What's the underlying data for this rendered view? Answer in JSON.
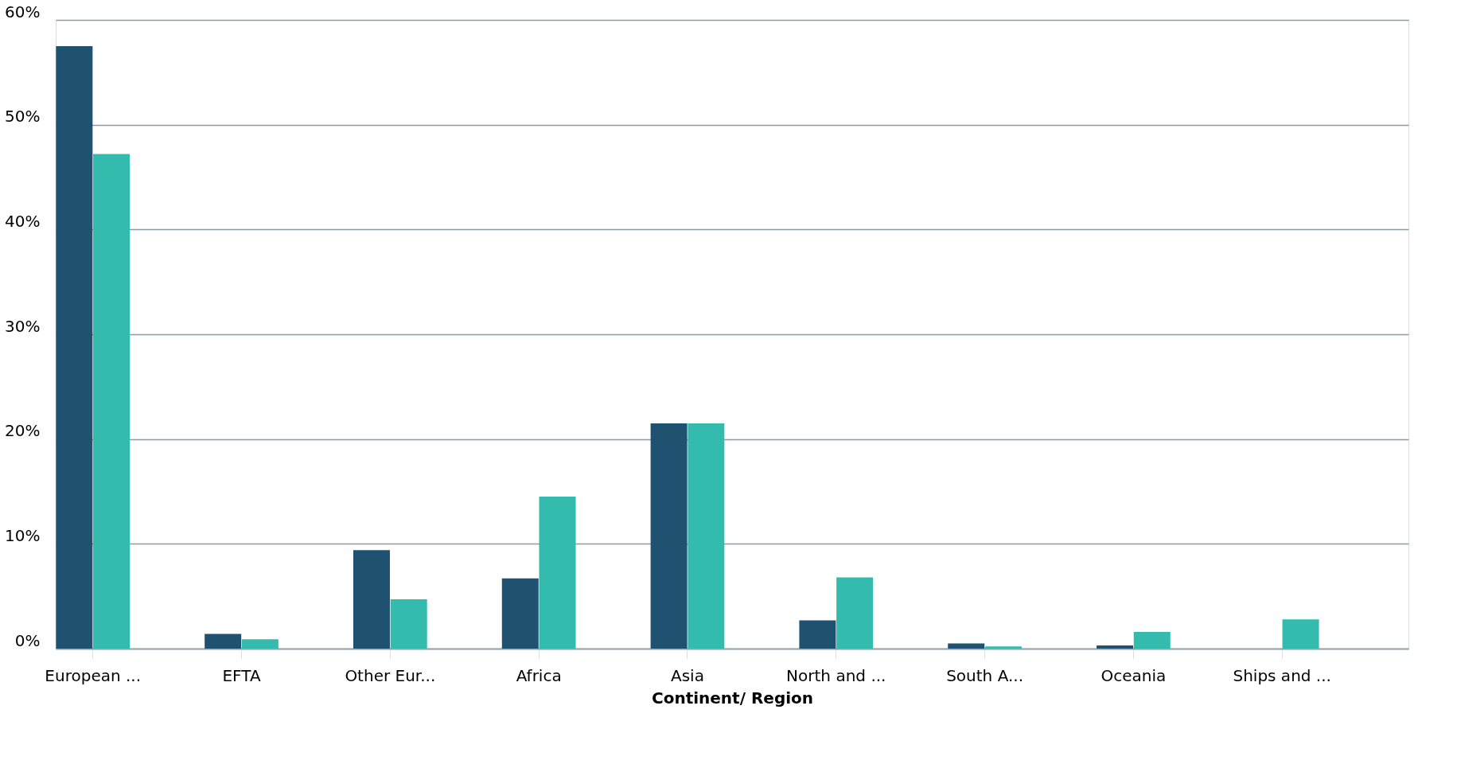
{
  "chart_data": {
    "type": "bar",
    "xlabel": "Continent/ Region",
    "categories": [
      "European ...",
      "EFTA",
      "Other Eur...",
      "Africa",
      "Asia",
      "North and ...",
      "South A...",
      "Oceania",
      "Ships and ..."
    ],
    "series": [
      {
        "color": "#1f5270",
        "values": [
          57.5,
          1.4,
          9.4,
          6.7,
          21.5,
          2.7,
          0.5,
          0.3,
          null
        ]
      },
      {
        "color": "#33bbad",
        "values": [
          47.2,
          0.9,
          4.7,
          14.5,
          21.5,
          6.8,
          0.2,
          1.6,
          2.8
        ]
      }
    ],
    "ylim": [
      0,
      60
    ],
    "yticks": [
      {
        "value": 0,
        "label": "0%"
      },
      {
        "value": 10,
        "label": "10%"
      },
      {
        "value": 20,
        "label": "20%"
      },
      {
        "value": 30,
        "label": "30%"
      },
      {
        "value": 40,
        "label": "40%"
      },
      {
        "value": 50,
        "label": "50%"
      },
      {
        "value": 60,
        "label": "60%"
      }
    ],
    "grid": "y",
    "legend": false
  }
}
